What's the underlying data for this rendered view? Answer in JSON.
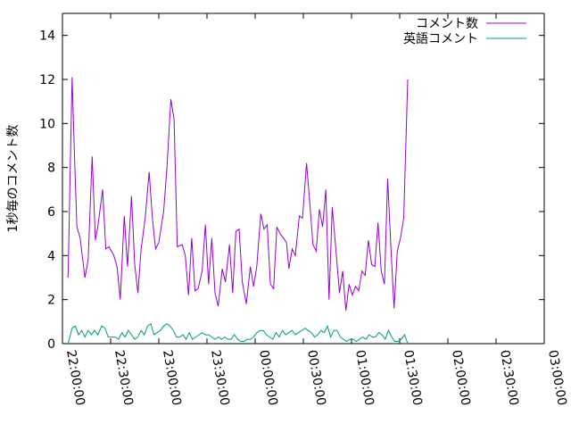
{
  "chart_data": {
    "type": "line",
    "title": "",
    "xlabel": "",
    "ylabel": "1秒毎のコメント数",
    "ylim": [
      0,
      15
    ],
    "xlim_minutes": [
      0,
      300
    ],
    "y_ticks": [
      0,
      2,
      4,
      6,
      8,
      10,
      12,
      14
    ],
    "x_ticks": [
      {
        "minute": 0,
        "label": "22:00:00"
      },
      {
        "minute": 30,
        "label": "22:30:00"
      },
      {
        "minute": 60,
        "label": "23:00:00"
      },
      {
        "minute": 90,
        "label": "23:30:00"
      },
      {
        "minute": 120,
        "label": "00:00:00"
      },
      {
        "minute": 150,
        "label": "00:30:00"
      },
      {
        "minute": 180,
        "label": "01:00:00"
      },
      {
        "minute": 210,
        "label": "01:30:00"
      },
      {
        "minute": 240,
        "label": "02:00:00"
      },
      {
        "minute": 270,
        "label": "02:30:00"
      },
      {
        "minute": 300,
        "label": "03:00:00"
      }
    ],
    "grid": false,
    "legend_position": "top-right",
    "series": [
      {
        "name": "コメント数",
        "color": "#9400d3",
        "points": [
          [
            3.5,
            3.0
          ],
          [
            6.0,
            12.1
          ],
          [
            7.5,
            8.5
          ],
          [
            9.0,
            5.3
          ],
          [
            11.0,
            4.8
          ],
          [
            14.0,
            3.0
          ],
          [
            16.0,
            3.8
          ],
          [
            18.5,
            8.5
          ],
          [
            20.5,
            4.7
          ],
          [
            22.0,
            5.3
          ],
          [
            25.0,
            7.0
          ],
          [
            27.0,
            4.3
          ],
          [
            29.0,
            4.4
          ],
          [
            32.0,
            4.0
          ],
          [
            34.0,
            3.5
          ],
          [
            36.0,
            2.0
          ],
          [
            38.5,
            5.8
          ],
          [
            40.5,
            3.5
          ],
          [
            43.0,
            6.7
          ],
          [
            45.0,
            3.6
          ],
          [
            47.0,
            2.3
          ],
          [
            49.0,
            4.3
          ],
          [
            51.5,
            5.7
          ],
          [
            54.0,
            7.8
          ],
          [
            56.0,
            5.7
          ],
          [
            58.0,
            4.3
          ],
          [
            60.0,
            4.6
          ],
          [
            63.0,
            6.0
          ],
          [
            65.0,
            7.9
          ],
          [
            67.5,
            11.1
          ],
          [
            69.5,
            10.2
          ],
          [
            71.5,
            4.4
          ],
          [
            74.5,
            4.5
          ],
          [
            76.5,
            4.0
          ],
          [
            78.5,
            2.2
          ],
          [
            80.5,
            4.8
          ],
          [
            82.5,
            2.4
          ],
          [
            84.5,
            2.5
          ],
          [
            87.0,
            3.3
          ],
          [
            89.0,
            5.4
          ],
          [
            91.0,
            2.7
          ],
          [
            93.0,
            4.8
          ],
          [
            95.0,
            2.3
          ],
          [
            97.0,
            1.7
          ],
          [
            99.5,
            3.4
          ],
          [
            101.5,
            2.8
          ],
          [
            104.0,
            4.5
          ],
          [
            106.0,
            2.3
          ],
          [
            108.0,
            5.1
          ],
          [
            110.0,
            5.2
          ],
          [
            112.0,
            2.8
          ],
          [
            114.5,
            1.8
          ],
          [
            117.0,
            3.5
          ],
          [
            119.0,
            2.6
          ],
          [
            121.0,
            3.5
          ],
          [
            123.5,
            5.9
          ],
          [
            125.5,
            5.2
          ],
          [
            127.5,
            5.4
          ],
          [
            129.5,
            2.7
          ],
          [
            131.5,
            2.5
          ],
          [
            133.5,
            5.3
          ],
          [
            135.5,
            5.0
          ],
          [
            137.5,
            4.8
          ],
          [
            139.5,
            4.6
          ],
          [
            141.0,
            3.4
          ],
          [
            143.0,
            4.3
          ],
          [
            145.0,
            4.0
          ],
          [
            147.5,
            5.8
          ],
          [
            149.5,
            5.7
          ],
          [
            152.0,
            8.2
          ],
          [
            154.0,
            6.4
          ],
          [
            156.0,
            4.5
          ],
          [
            158.0,
            4.2
          ],
          [
            160.0,
            6.1
          ],
          [
            162.0,
            5.3
          ],
          [
            164.0,
            7.0
          ],
          [
            166.0,
            2.0
          ],
          [
            168.0,
            6.2
          ],
          [
            170.0,
            4.5
          ],
          [
            172.5,
            2.3
          ],
          [
            174.5,
            3.3
          ],
          [
            176.5,
            1.5
          ],
          [
            178.5,
            2.7
          ],
          [
            180.5,
            2.2
          ],
          [
            182.5,
            2.6
          ],
          [
            184.5,
            2.4
          ],
          [
            186.5,
            3.3
          ],
          [
            188.5,
            3.1
          ],
          [
            190.5,
            4.7
          ],
          [
            192.5,
            3.6
          ],
          [
            194.5,
            3.5
          ],
          [
            196.5,
            5.5
          ],
          [
            198.5,
            3.3
          ],
          [
            200.5,
            2.7
          ],
          [
            202.5,
            7.5
          ],
          [
            204.5,
            4.4
          ],
          [
            206.5,
            1.6
          ],
          [
            208.5,
            4.2
          ],
          [
            210.5,
            4.8
          ],
          [
            212.5,
            5.7
          ],
          [
            215.0,
            12.0
          ]
        ]
      },
      {
        "name": "英語コメント",
        "color": "#009e73",
        "points": [
          [
            3.5,
            0.0
          ],
          [
            6.0,
            0.7
          ],
          [
            8.0,
            0.8
          ],
          [
            10.0,
            0.4
          ],
          [
            12.0,
            0.6
          ],
          [
            14.0,
            0.3
          ],
          [
            16.0,
            0.6
          ],
          [
            18.0,
            0.4
          ],
          [
            20.0,
            0.6
          ],
          [
            22.0,
            0.4
          ],
          [
            24.5,
            0.8
          ],
          [
            26.5,
            0.7
          ],
          [
            28.5,
            0.3
          ],
          [
            31.0,
            0.3
          ],
          [
            33.0,
            0.3
          ],
          [
            35.0,
            0.2
          ],
          [
            37.0,
            0.5
          ],
          [
            39.0,
            0.3
          ],
          [
            41.0,
            0.6
          ],
          [
            43.0,
            0.4
          ],
          [
            45.0,
            0.2
          ],
          [
            47.0,
            0.3
          ],
          [
            49.0,
            0.6
          ],
          [
            51.0,
            0.4
          ],
          [
            53.0,
            0.8
          ],
          [
            55.0,
            0.9
          ],
          [
            57.0,
            0.4
          ],
          [
            59.0,
            0.5
          ],
          [
            61.0,
            0.6
          ],
          [
            63.0,
            0.8
          ],
          [
            65.0,
            0.9
          ],
          [
            67.0,
            0.8
          ],
          [
            69.0,
            0.6
          ],
          [
            71.0,
            0.3
          ],
          [
            73.0,
            0.3
          ],
          [
            75.0,
            0.4
          ],
          [
            77.0,
            0.2
          ],
          [
            79.0,
            0.5
          ],
          [
            81.0,
            0.2
          ],
          [
            83.0,
            0.3
          ],
          [
            85.0,
            0.4
          ],
          [
            87.0,
            0.5
          ],
          [
            89.0,
            0.4
          ],
          [
            91.0,
            0.4
          ],
          [
            93.0,
            0.3
          ],
          [
            95.0,
            0.2
          ],
          [
            97.0,
            0.3
          ],
          [
            99.0,
            0.2
          ],
          [
            101.0,
            0.3
          ],
          [
            103.0,
            0.2
          ],
          [
            105.0,
            0.2
          ],
          [
            107.0,
            0.4
          ],
          [
            109.0,
            0.2
          ],
          [
            111.0,
            0.1
          ],
          [
            113.0,
            0.1
          ],
          [
            115.0,
            0.2
          ],
          [
            117.0,
            0.2
          ],
          [
            119.0,
            0.3
          ],
          [
            121.0,
            0.5
          ],
          [
            123.0,
            0.6
          ],
          [
            125.0,
            0.6
          ],
          [
            127.0,
            0.4
          ],
          [
            129.0,
            0.3
          ],
          [
            131.0,
            0.2
          ],
          [
            133.0,
            0.5
          ],
          [
            135.0,
            0.3
          ],
          [
            137.0,
            0.6
          ],
          [
            139.0,
            0.4
          ],
          [
            141.0,
            0.5
          ],
          [
            143.0,
            0.6
          ],
          [
            145.0,
            0.4
          ],
          [
            147.0,
            0.5
          ],
          [
            149.0,
            0.6
          ],
          [
            151.0,
            0.7
          ],
          [
            153.0,
            0.6
          ],
          [
            155.0,
            0.5
          ],
          [
            157.0,
            0.3
          ],
          [
            159.0,
            0.4
          ],
          [
            161.0,
            0.6
          ],
          [
            163.0,
            0.5
          ],
          [
            165.0,
            0.8
          ],
          [
            167.0,
            0.3
          ],
          [
            169.0,
            0.6
          ],
          [
            171.0,
            0.6
          ],
          [
            173.0,
            0.3
          ],
          [
            175.0,
            0.2
          ],
          [
            177.0,
            0.1
          ],
          [
            179.0,
            0.2
          ],
          [
            181.0,
            0.2
          ],
          [
            183.0,
            0.1
          ],
          [
            185.0,
            0.2
          ],
          [
            187.0,
            0.3
          ],
          [
            189.0,
            0.2
          ],
          [
            191.0,
            0.4
          ],
          [
            193.0,
            0.3
          ],
          [
            195.0,
            0.3
          ],
          [
            197.0,
            0.5
          ],
          [
            199.0,
            0.4
          ],
          [
            201.0,
            0.2
          ],
          [
            203.0,
            0.6
          ],
          [
            205.0,
            0.3
          ],
          [
            207.0,
            0.1
          ],
          [
            209.0,
            0.1
          ],
          [
            211.0,
            0.2
          ],
          [
            213.0,
            0.4
          ],
          [
            215.0,
            0.0
          ]
        ]
      }
    ]
  }
}
